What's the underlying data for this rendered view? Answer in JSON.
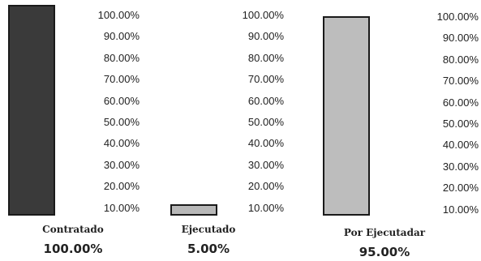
{
  "chart_data": {
    "type": "bar",
    "categories": [
      "Contratado",
      "Ejecutado",
      "Por Ejecutadar"
    ],
    "values": [
      100,
      5,
      95
    ],
    "value_labels": [
      "100.00%",
      "5.00%",
      "95.00%"
    ],
    "tick_labels": [
      "100.00%",
      "90.00%",
      "80.00%",
      "70.00%",
      "60.00%",
      "50.00%",
      "40.00%",
      "30.00%",
      "20.00%",
      "10.00%"
    ],
    "colors": [
      "#3a3a3a",
      "#b8b8b8",
      "#bdbdbd"
    ],
    "ylim": [
      5,
      100
    ],
    "grid": false,
    "legend": "none"
  }
}
